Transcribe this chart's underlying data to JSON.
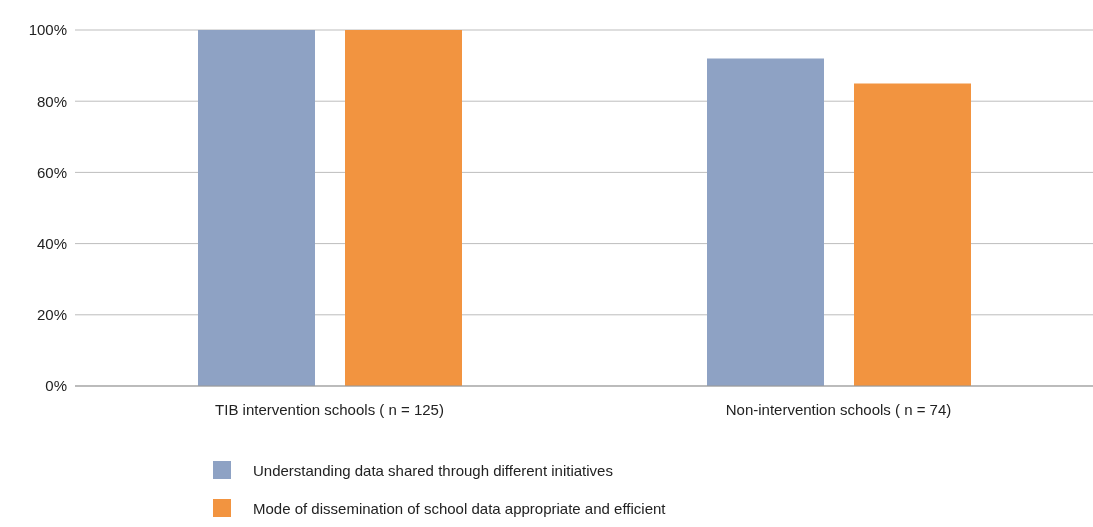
{
  "chart_data": {
    "type": "bar",
    "categories": [
      "TIB intervention schools ( n = 125)",
      "Non-intervention schools ( n = 74)"
    ],
    "series": [
      {
        "name": "Understanding data shared through different initiatives",
        "color": "#8ea2c4",
        "values": [
          100,
          92
        ]
      },
      {
        "name": "Mode of dissemination of school data appropriate and efficient",
        "color": "#f29440",
        "values": [
          100,
          85
        ]
      }
    ],
    "ylim": [
      0,
      100
    ],
    "yticks": [
      {
        "value": 0,
        "label": "0%"
      },
      {
        "value": 20,
        "label": "20%"
      },
      {
        "value": 40,
        "label": "40%"
      },
      {
        "value": 60,
        "label": "60%"
      },
      {
        "value": 80,
        "label": "80%"
      },
      {
        "value": 100,
        "label": "100%"
      }
    ],
    "grid": "y",
    "legend": "bottom"
  }
}
